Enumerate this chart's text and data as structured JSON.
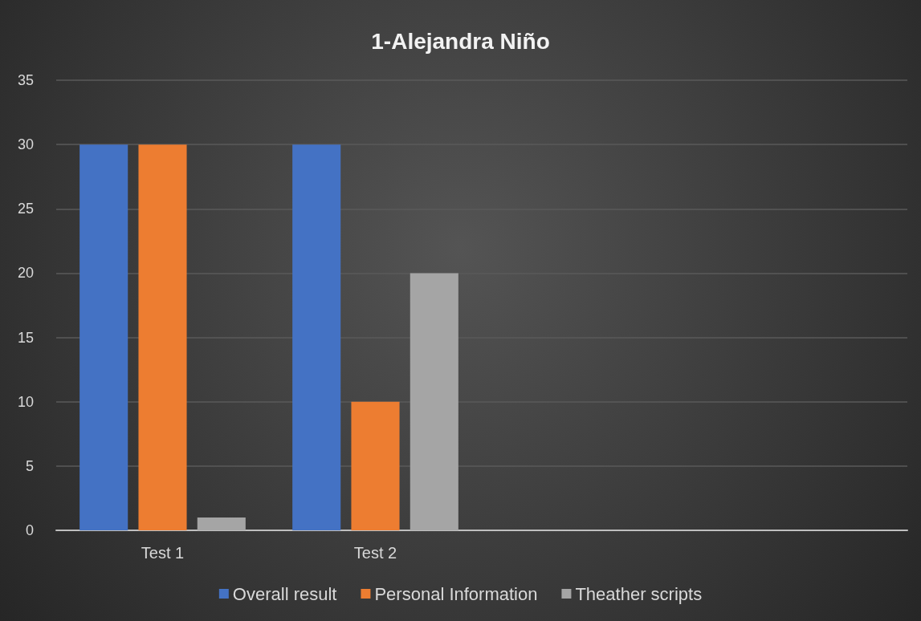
{
  "chart_data": {
    "type": "bar",
    "title": "1-Alejandra Niño",
    "categories": [
      "Test 1",
      "Test 2",
      null,
      null
    ],
    "series": [
      {
        "name": "Overall result",
        "color": "#4472c4",
        "values": [
          30,
          30,
          null,
          null
        ]
      },
      {
        "name": "Personal Information",
        "color": "#ed7d31",
        "values": [
          30,
          10,
          null,
          null
        ]
      },
      {
        "name": "Theather scripts",
        "color": "#a5a5a5",
        "values": [
          1,
          20,
          null,
          null
        ]
      }
    ],
    "ylim": [
      0,
      35
    ],
    "yticks": [
      0,
      5,
      10,
      15,
      20,
      25,
      30,
      35
    ],
    "grid": "y",
    "legend": "bottom"
  }
}
